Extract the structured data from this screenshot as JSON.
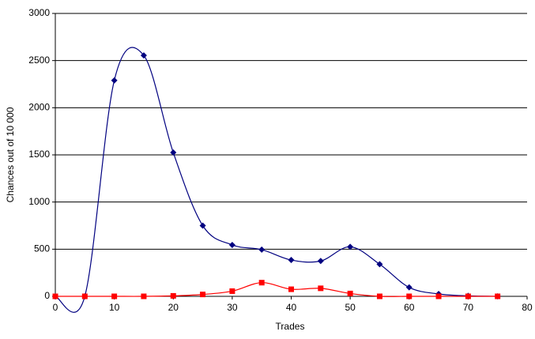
{
  "chart_data": {
    "type": "line",
    "smooth": true,
    "grid": true,
    "xlabel": "Trades",
    "ylabel": "Chances out of 10 000",
    "x": [
      0,
      5,
      10,
      15,
      20,
      25,
      30,
      35,
      40,
      45,
      50,
      55,
      60,
      65,
      70,
      75
    ],
    "series": [
      {
        "color": "#000080",
        "marker": "diamond",
        "values": [
          0,
          0,
          2290,
          2555,
          1525,
          750,
          545,
          495,
          385,
          375,
          525,
          340,
          95,
          25,
          5,
          0
        ]
      },
      {
        "color": "#ff0000",
        "marker": "square",
        "values": [
          0,
          0,
          0,
          0,
          5,
          20,
          55,
          145,
          75,
          85,
          30,
          0,
          0,
          0,
          0,
          0
        ]
      }
    ],
    "xlim": [
      0,
      80
    ],
    "xticks": [
      0,
      10,
      20,
      30,
      40,
      50,
      60,
      70,
      80
    ],
    "ylim": [
      0,
      3000
    ],
    "yticks": [
      0,
      500,
      1000,
      1500,
      2000,
      2500,
      3000
    ]
  }
}
